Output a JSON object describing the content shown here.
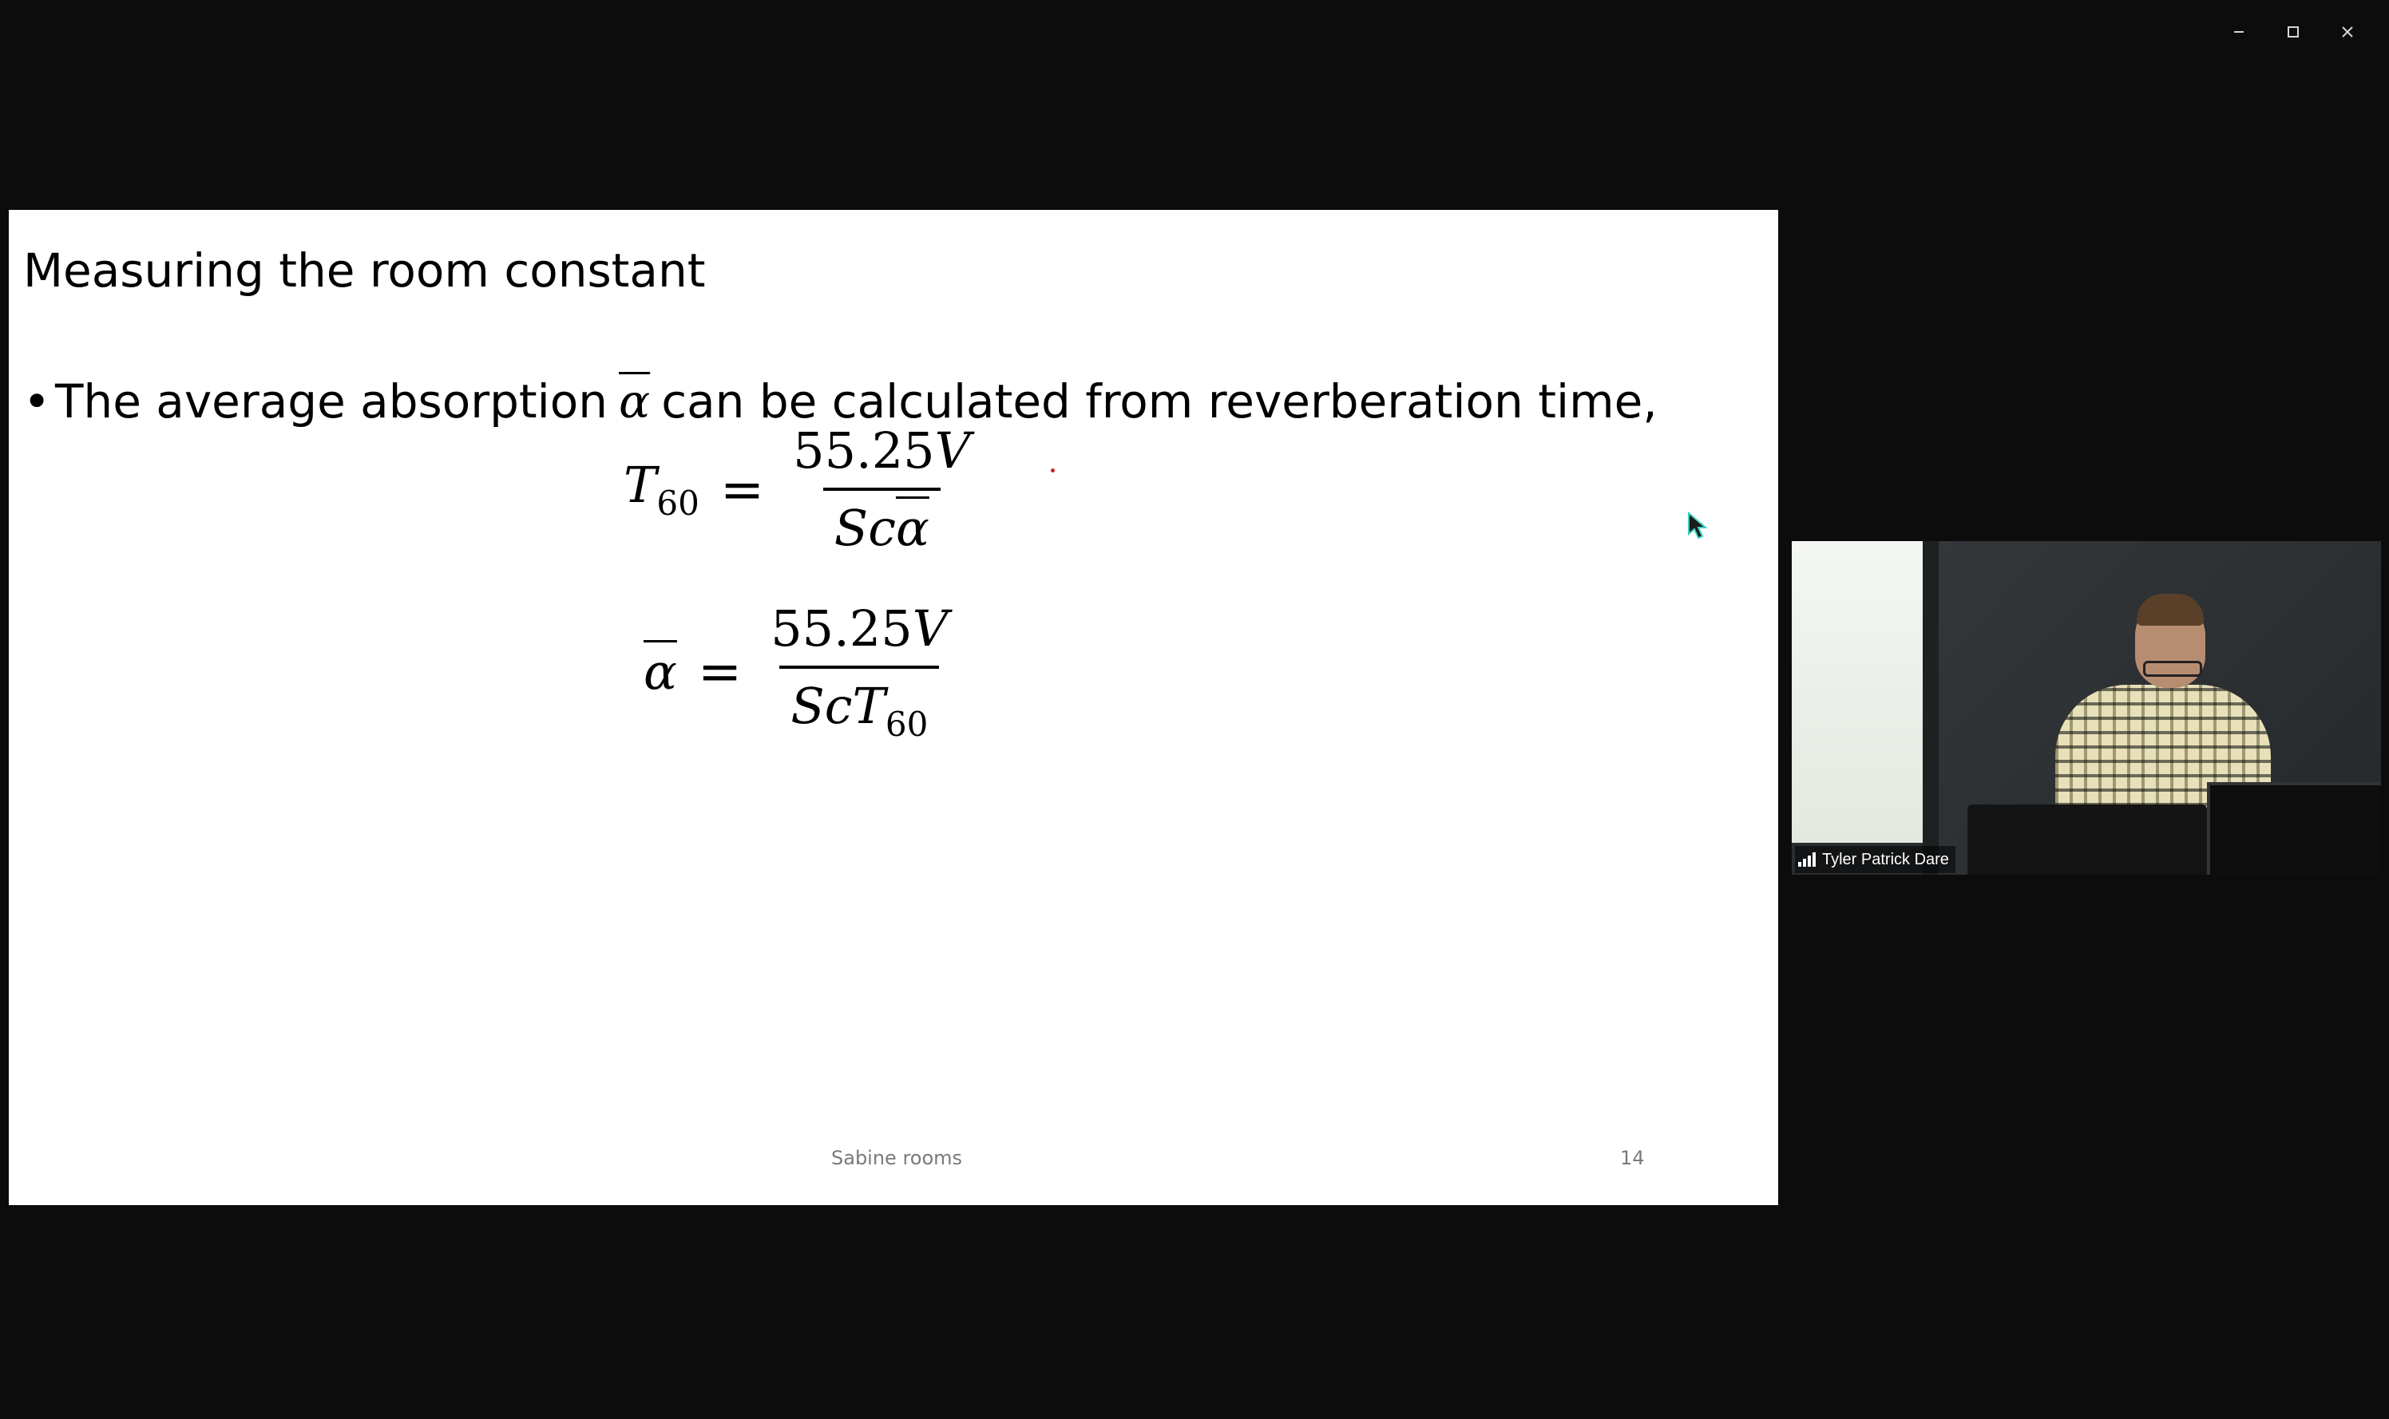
{
  "window": {
    "controls": {
      "minimize": "minimize-icon",
      "maximize": "maximize-icon",
      "close": "close-icon"
    }
  },
  "slide": {
    "title": "Measuring the room constant",
    "bullet": {
      "marker": "•",
      "text_before": "The average absorption",
      "symbol": "α",
      "text_after": "can be calculated from reverberation time,"
    },
    "equations": [
      {
        "lhs_var": "T",
        "lhs_sub": "60",
        "equals": "=",
        "num_const": "55.25",
        "num_var": "V",
        "den_S": "S",
        "den_c": "c",
        "den_alpha": "α"
      },
      {
        "lhs_var": "α",
        "equals": "=",
        "num_const": "55.25",
        "num_var": "V",
        "den_S": "S",
        "den_c": "c",
        "den_T": "T",
        "den_sub": "60"
      }
    ],
    "footer": {
      "center": "Sabine rooms",
      "page_number": "14"
    },
    "colors": {
      "annotation_dot": "#d42020"
    }
  },
  "video_tile": {
    "participant_name": "Tyler Patrick Dare",
    "signal_icon": "signal-bars-icon"
  },
  "cursor_icon": "mouse-pointer-icon"
}
